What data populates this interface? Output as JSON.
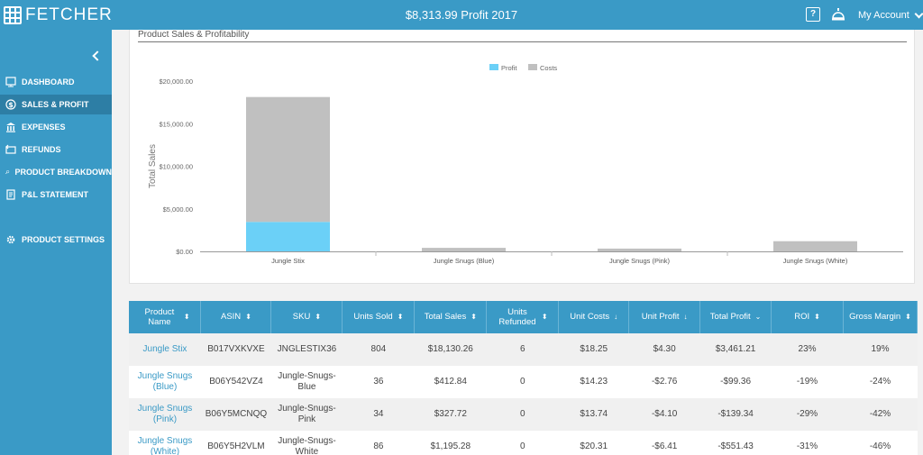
{
  "app": {
    "logo": "FETCHER",
    "title": "$8,313.99 Profit 2017",
    "account_label": "My Account"
  },
  "sidebar": {
    "items": [
      {
        "label": "DASHBOARD",
        "icon": "dashboard-icon"
      },
      {
        "label": "SALES & PROFIT",
        "icon": "dollar-icon",
        "active": true
      },
      {
        "label": "EXPENSES",
        "icon": "bank-icon"
      },
      {
        "label": "REFUNDS",
        "icon": "refund-icon"
      },
      {
        "label": "PRODUCT BREAKDOWN",
        "icon": "magnifier-icon"
      },
      {
        "label": "P&L STATEMENT",
        "icon": "statement-icon"
      },
      {
        "label": "PRODUCT SETTINGS",
        "icon": "gear-icon"
      }
    ]
  },
  "chart": {
    "title": "Product Sales & Profitability"
  },
  "chart_data": {
    "type": "bar",
    "stacked": true,
    "categories": [
      "Jungle Stix",
      "Jungle Snugs (Blue)",
      "Jungle Snugs (Pink)",
      "Jungle Snugs (White)"
    ],
    "series": [
      {
        "name": "Profit",
        "color": "#6bd0f7",
        "values": [
          3461.21,
          0,
          0,
          0
        ]
      },
      {
        "name": "Costs",
        "color": "#c0c0c0",
        "values": [
          14669.05,
          412.84,
          327.72,
          1195.28
        ]
      }
    ],
    "ylabel": "Total Sales",
    "ylim": [
      0,
      20000
    ],
    "yticks": [
      "$0.00",
      "$5,000.00",
      "$10,000.00",
      "$15,000.00",
      "$20,000.00"
    ],
    "ytick_values": [
      0,
      5000,
      10000,
      15000,
      20000
    ],
    "legend": "top-center"
  },
  "table": {
    "headers": [
      {
        "label": "Product Name",
        "sort": "⬍"
      },
      {
        "label": "ASIN",
        "sort": "⬍"
      },
      {
        "label": "SKU",
        "sort": "⬍"
      },
      {
        "label": "Units Sold",
        "sort": "⬍"
      },
      {
        "label": "Total Sales",
        "sort": "⬍"
      },
      {
        "label": "Units Refunded",
        "sort": "⬍"
      },
      {
        "label": "Unit Costs",
        "sort": "↓"
      },
      {
        "label": "Unit Profit",
        "sort": "↓"
      },
      {
        "label": "Total Profit",
        "sort": "⌄"
      },
      {
        "label": "ROI",
        "sort": "⬍"
      },
      {
        "label": "Gross Margin",
        "sort": "⬍"
      }
    ],
    "rows": [
      [
        "Jungle Stix",
        "B017VXKVXE",
        "JNGLESTIX36",
        "804",
        "$18,130.26",
        "6",
        "$18.25",
        "$4.30",
        "$3,461.21",
        "23%",
        "19%"
      ],
      [
        "Jungle Snugs (Blue)",
        "B06Y542VZ4",
        "Jungle-Snugs-Blue",
        "36",
        "$412.84",
        "0",
        "$14.23",
        "-$2.76",
        "-$99.36",
        "-19%",
        "-24%"
      ],
      [
        "Jungle Snugs (Pink)",
        "B06Y5MCNQQ",
        "Jungle-Snugs-Pink",
        "34",
        "$327.72",
        "0",
        "$13.74",
        "-$4.10",
        "-$139.34",
        "-29%",
        "-42%"
      ],
      [
        "Jungle Snugs (White)",
        "B06Y5H2VLM",
        "Jungle-Snugs-White",
        "86",
        "$1,195.28",
        "0",
        "$20.31",
        "-$6.41",
        "-$551.43",
        "-31%",
        "-46%"
      ]
    ]
  }
}
